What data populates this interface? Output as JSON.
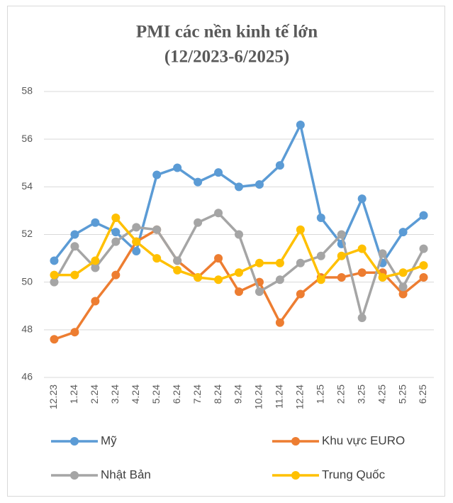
{
  "chart_data": {
    "type": "line",
    "title": "PMI các nền kinh tế lớn",
    "subtitle": "(12/2023-6/2025)",
    "categories": [
      "12.23",
      "1.24",
      "2.24",
      "3.24",
      "4.24",
      "5.24",
      "6.24",
      "7.24",
      "8.24",
      "9.24",
      "10.24",
      "11.24",
      "12.24",
      "1.25",
      "2.25",
      "3.25",
      "4.25",
      "5.25",
      "6.25"
    ],
    "series": [
      {
        "name": "Mỹ",
        "color": "#5b9bd5",
        "values": [
          50.9,
          52.0,
          52.5,
          52.1,
          51.3,
          54.5,
          54.8,
          54.2,
          54.6,
          54.0,
          54.1,
          54.9,
          56.6,
          52.7,
          51.6,
          53.5,
          50.8,
          52.1,
          52.8
        ]
      },
      {
        "name": "Khu vực EURO",
        "color": "#ed7d31",
        "values": [
          47.6,
          47.9,
          49.2,
          50.3,
          51.7,
          52.2,
          50.9,
          50.2,
          51.0,
          49.6,
          50.0,
          48.3,
          49.5,
          50.2,
          50.2,
          50.4,
          50.4,
          49.5,
          50.2
        ]
      },
      {
        "name": "Nhật Bản",
        "color": "#a5a5a5",
        "values": [
          50.0,
          51.5,
          50.6,
          51.7,
          52.3,
          52.2,
          50.9,
          52.5,
          52.9,
          52.0,
          49.6,
          50.1,
          50.8,
          51.1,
          52.0,
          48.5,
          51.2,
          49.8,
          51.4
        ]
      },
      {
        "name": "Trung Quốc",
        "color": "#ffc000",
        "values": [
          50.3,
          50.3,
          50.9,
          52.7,
          51.7,
          51.0,
          50.5,
          50.2,
          50.1,
          50.4,
          50.8,
          50.8,
          52.2,
          50.1,
          51.1,
          51.4,
          50.2,
          50.4,
          50.7
        ]
      }
    ],
    "ylim": [
      46,
      58
    ],
    "yticks": [
      46,
      48,
      50,
      52,
      54,
      56,
      58
    ],
    "grid": true,
    "legend": "bottom"
  }
}
